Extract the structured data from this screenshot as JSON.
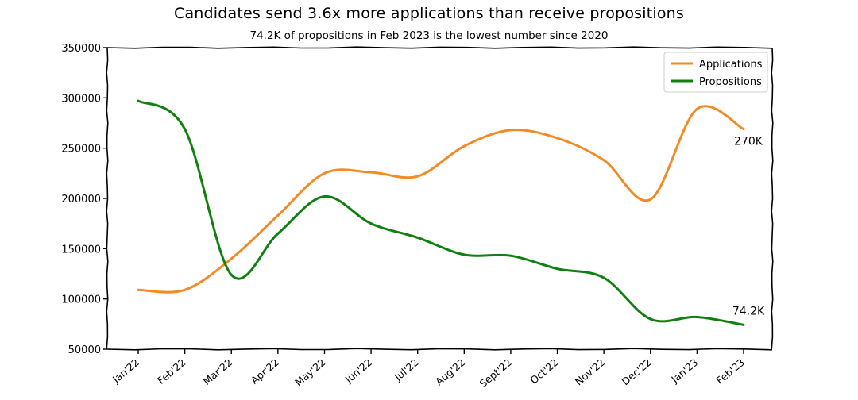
{
  "chart_data": {
    "type": "line",
    "title": "Candidates send 3.6x more applications than receive propositions",
    "subtitle": "74.2K of propositions in Feb 2023 is the lowest number since 2020",
    "categories": [
      "Jan'22",
      "Feb'22",
      "Mar'22",
      "Apr'22",
      "May'22",
      "Jun'22",
      "Jul'22",
      "Aug'22",
      "Sept'22",
      "Oct'22",
      "Nov'22",
      "Dec'22",
      "Jan'23",
      "Feb'23"
    ],
    "series": [
      {
        "name": "Applications",
        "color": "#f28a25",
        "values": [
          109000,
          109000,
          140000,
          183000,
          225000,
          226000,
          222000,
          252000,
          268000,
          260000,
          238000,
          199000,
          289000,
          269000
        ]
      },
      {
        "name": "Propositions",
        "color": "#108010",
        "values": [
          297000,
          269000,
          124000,
          165000,
          202000,
          175000,
          161000,
          144000,
          143000,
          130000,
          121000,
          80000,
          82000,
          74200
        ]
      }
    ],
    "ylim": [
      50000,
      350000
    ],
    "yticks": [
      "50000",
      "100000",
      "150000",
      "200000",
      "250000",
      "300000",
      "350000"
    ],
    "annotations": [
      {
        "text": "270K",
        "series": "Applications",
        "category": "Feb'23"
      },
      {
        "text": "74.2K",
        "series": "Propositions",
        "category": "Feb'23"
      }
    ],
    "legend": "top-right",
    "grid": false
  }
}
